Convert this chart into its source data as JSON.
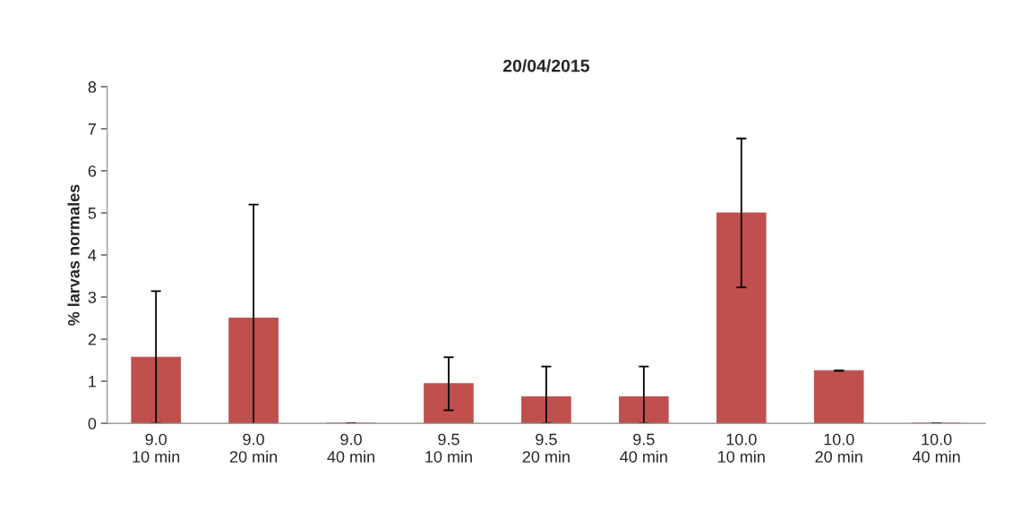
{
  "chart_data": {
    "type": "bar",
    "title": "20/04/2015",
    "ylabel": "% larvas normales",
    "categories": [
      "9.0\n10 min",
      "9.0\n20 min",
      "9.0\n40 min",
      "9.5\n10 min",
      "9.5\n20 min",
      "9.5\n40 min",
      "10.0\n10 min",
      "10.0\n20 min",
      "10.0\n40 min"
    ],
    "values": [
      1.57,
      2.5,
      0,
      0.94,
      0.63,
      0.63,
      5.0,
      1.25,
      0
    ],
    "errors": [
      1.57,
      2.7,
      0,
      0.63,
      [
        0,
        1.35
      ],
      [
        0,
        1.35
      ],
      1.77,
      0,
      0
    ],
    "color": "#c0504d",
    "ylim": [
      0,
      8
    ],
    "yticks": [
      0,
      1,
      2,
      3,
      4,
      5,
      6,
      7,
      8
    ],
    "grid": false,
    "legend": false
  }
}
